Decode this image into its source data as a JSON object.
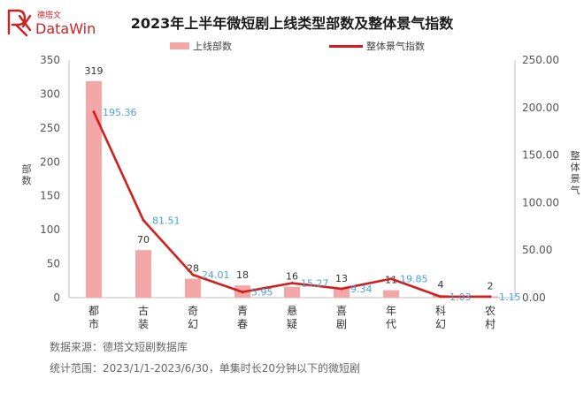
{
  "logo": {
    "brand": "DataWin",
    "brand_cn": "德塔文"
  },
  "chart_data": {
    "type": "bar+line",
    "title": "2023年上半年微短剧上线类型部数及整体景气指数",
    "categories": [
      "都市",
      "古装",
      "奇幻",
      "青春",
      "悬疑",
      "喜剧",
      "年代",
      "科幻",
      "农村"
    ],
    "series": [
      {
        "name": "上线部数",
        "kind": "bar",
        "axis": "left",
        "color": "#f4a7a7",
        "values": [
          319,
          70,
          28,
          18,
          16,
          13,
          11,
          4,
          2
        ],
        "labels": [
          "319",
          "70",
          "28",
          "18",
          "16",
          "13",
          "11",
          "4",
          "2"
        ]
      },
      {
        "name": "整体景气指数",
        "kind": "line",
        "axis": "right",
        "color": "#d11f1f",
        "values": [
          195.36,
          81.51,
          24.01,
          5.95,
          15.27,
          9.34,
          19.85,
          1.03,
          1.15
        ],
        "labels": [
          "195.36",
          "81.51",
          "24.01",
          "5.95",
          "15.27",
          "9.34",
          "19.85",
          "1.03",
          "1.15"
        ]
      }
    ],
    "y_left": {
      "label": "部数",
      "min": 0,
      "max": 350,
      "ticks": [
        0,
        50,
        100,
        150,
        200,
        250,
        300,
        350
      ],
      "tick_labels": [
        "0",
        "50",
        "100",
        "150",
        "200",
        "250",
        "300",
        "350"
      ]
    },
    "y_right": {
      "label": "整体景气",
      "min": 0,
      "max": 250,
      "ticks": [
        0,
        50,
        100,
        150,
        200,
        250
      ],
      "tick_labels": [
        "0.00",
        "50.00",
        "100.00",
        "150.00",
        "200.00",
        "250.00"
      ]
    },
    "label_color_line": "#4aa3d9",
    "grid": false
  },
  "footer": {
    "source": "数据来源：德塔文短剧数据库",
    "range": "统计范围：2023/1/1-2023/6/30，单集时长20分钟以下的微短剧"
  }
}
